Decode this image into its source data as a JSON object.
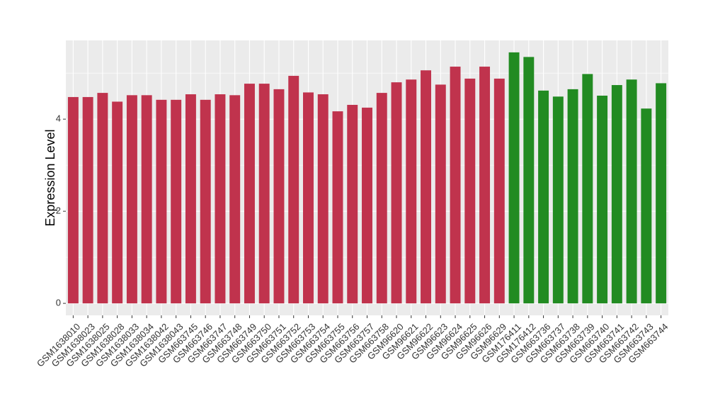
{
  "chart_data": {
    "type": "bar",
    "y_label": "Expression Level",
    "categories": [
      "GSM1638010",
      "GSM1638023",
      "GSM1638025",
      "GSM1638028",
      "GSM1638033",
      "GSM1638034",
      "GSM1638042",
      "GSM1638043",
      "GSM663745",
      "GSM663746",
      "GSM663747",
      "GSM663748",
      "GSM663749",
      "GSM663750",
      "GSM663751",
      "GSM663752",
      "GSM663753",
      "GSM663754",
      "GSM663755",
      "GSM663756",
      "GSM663757",
      "GSM663758",
      "GSM96620",
      "GSM96621",
      "GSM96622",
      "GSM96623",
      "GSM96624",
      "GSM96625",
      "GSM96626",
      "GSM96629",
      "GSM176411",
      "GSM176412",
      "GSM663736",
      "GSM663737",
      "GSM663738",
      "GSM663739",
      "GSM663740",
      "GSM663741",
      "GSM663742",
      "GSM663743",
      "GSM663744"
    ],
    "values": [
      4.48,
      4.48,
      4.57,
      4.38,
      4.52,
      4.52,
      4.42,
      4.42,
      4.54,
      4.42,
      4.54,
      4.52,
      4.77,
      4.77,
      4.65,
      4.94,
      4.58,
      4.54,
      4.17,
      4.31,
      4.25,
      4.57,
      4.8,
      4.86,
      5.06,
      4.75,
      5.14,
      4.88,
      5.14,
      4.88,
      5.45,
      5.35,
      4.62,
      4.49,
      4.65,
      4.98,
      4.51,
      4.74,
      4.86,
      4.23,
      4.78
    ],
    "colors": [
      "#c0334d",
      "#c0334d",
      "#c0334d",
      "#c0334d",
      "#c0334d",
      "#c0334d",
      "#c0334d",
      "#c0334d",
      "#c0334d",
      "#c0334d",
      "#c0334d",
      "#c0334d",
      "#c0334d",
      "#c0334d",
      "#c0334d",
      "#c0334d",
      "#c0334d",
      "#c0334d",
      "#c0334d",
      "#c0334d",
      "#c0334d",
      "#c0334d",
      "#c0334d",
      "#c0334d",
      "#c0334d",
      "#c0334d",
      "#c0334d",
      "#c0334d",
      "#c0334d",
      "#c0334d",
      "#228b22",
      "#228b22",
      "#228b22",
      "#228b22",
      "#228b22",
      "#228b22",
      "#228b22",
      "#228b22",
      "#228b22",
      "#228b22",
      "#228b22"
    ],
    "ylim": [
      -0.26,
      5.71
    ],
    "yticks": [
      0,
      2,
      4
    ],
    "grid": true
  }
}
